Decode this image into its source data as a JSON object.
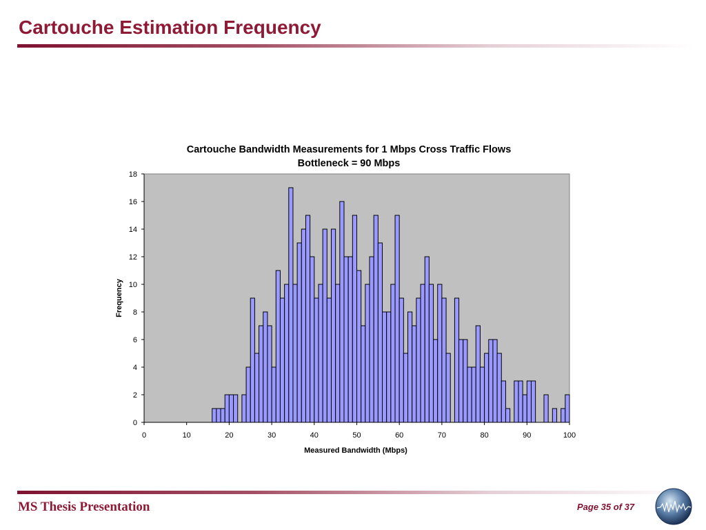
{
  "slide": {
    "title": "Cartouche Estimation Frequency",
    "footer_left": "MS Thesis Presentation",
    "footer_right": "Page 35 of 37"
  },
  "colors": {
    "accent": "#8e1a35",
    "plot_background": "#c0c0c0",
    "bar_fill": "#9999ff",
    "bar_stroke": "#000000"
  },
  "chart_data": {
    "type": "bar",
    "title": "Cartouche Bandwidth Measurements for 1 Mbps Cross Traffic Flows",
    "subtitle": "Bottleneck = 90 Mbps",
    "xlabel": "Measured Bandwidth (Mbps)",
    "ylabel": "Frequency",
    "xlim": [
      0,
      100
    ],
    "ylim": [
      0,
      18
    ],
    "x_ticks": [
      0,
      10,
      20,
      30,
      40,
      50,
      60,
      70,
      80,
      90,
      100
    ],
    "y_ticks": [
      0,
      2,
      4,
      6,
      8,
      10,
      12,
      14,
      16,
      18
    ],
    "grid": false,
    "legend": "none",
    "bin_width": 1,
    "series": [
      {
        "x": [
          17,
          18,
          19,
          20,
          21,
          22,
          24,
          25,
          26,
          27,
          28,
          29,
          30,
          31,
          32,
          33,
          34,
          35,
          36,
          37,
          38,
          39,
          40,
          41,
          42,
          43,
          44,
          45,
          46,
          47,
          48,
          49,
          50,
          51,
          52,
          53,
          54,
          55,
          56,
          57,
          58,
          59,
          60,
          61,
          62,
          63,
          64,
          65,
          66,
          67,
          68,
          69,
          70,
          71,
          72,
          74,
          75,
          76,
          77,
          78,
          79,
          80,
          81,
          82,
          83,
          84,
          85,
          86,
          88,
          89,
          90,
          91,
          92,
          95,
          97,
          99,
          100
        ],
        "values": [
          1,
          1,
          1,
          2,
          2,
          2,
          2,
          4,
          9,
          5,
          7,
          8,
          7,
          4,
          11,
          9,
          10,
          17,
          10,
          13,
          14,
          15,
          12,
          9,
          10,
          14,
          9,
          14,
          10,
          16,
          12,
          12,
          15,
          11,
          7,
          10,
          12,
          15,
          13,
          8,
          8,
          10,
          15,
          9,
          5,
          8,
          7,
          9,
          10,
          12,
          10,
          6,
          10,
          9,
          5,
          9,
          6,
          6,
          4,
          4,
          7,
          4,
          5,
          6,
          6,
          5,
          3,
          1,
          3,
          3,
          2,
          3,
          3,
          2,
          1,
          1,
          2
        ]
      }
    ]
  }
}
